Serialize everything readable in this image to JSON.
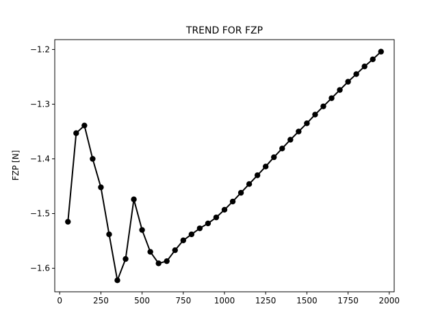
{
  "chart_data": {
    "type": "line",
    "title": "TREND FOR FZP",
    "xlabel": "",
    "ylabel": "FZP [N]",
    "xlim": [
      -30,
      2030
    ],
    "ylim": [
      -1.643,
      -1.182
    ],
    "xticks": [
      0,
      250,
      500,
      750,
      1000,
      1250,
      1500,
      1750,
      2000
    ],
    "xtick_labels": [
      "0",
      "250",
      "500",
      "750",
      "1000",
      "1250",
      "1500",
      "1750",
      "2000"
    ],
    "yticks": [
      -1.2,
      -1.3,
      -1.4,
      -1.5,
      -1.6
    ],
    "ytick_labels": [
      "−1.2",
      "−1.3",
      "−1.4",
      "−1.5",
      "−1.6"
    ],
    "grid": false,
    "line_color": "#000000",
    "marker": "circle",
    "series": [
      {
        "x": [
          50,
          100,
          150,
          200,
          250,
          300,
          350,
          400,
          450,
          500,
          550,
          600,
          650,
          700,
          750,
          800,
          850,
          900,
          950,
          1000,
          1050,
          1100,
          1150,
          1200,
          1250,
          1300,
          1350,
          1400,
          1450,
          1500,
          1550,
          1600,
          1650,
          1700,
          1750,
          1800,
          1850,
          1900,
          1950
        ],
        "y": [
          -1.515,
          -1.353,
          -1.339,
          -1.4,
          -1.452,
          -1.538,
          -1.622,
          -1.583,
          -1.474,
          -1.53,
          -1.57,
          -1.591,
          -1.587,
          -1.567,
          -1.549,
          -1.538,
          -1.527,
          -1.518,
          -1.507,
          -1.493,
          -1.478,
          -1.462,
          -1.446,
          -1.43,
          -1.414,
          -1.397,
          -1.381,
          -1.365,
          -1.35,
          -1.335,
          -1.319,
          -1.304,
          -1.289,
          -1.274,
          -1.259,
          -1.245,
          -1.231,
          -1.218,
          -1.204
        ]
      }
    ]
  }
}
